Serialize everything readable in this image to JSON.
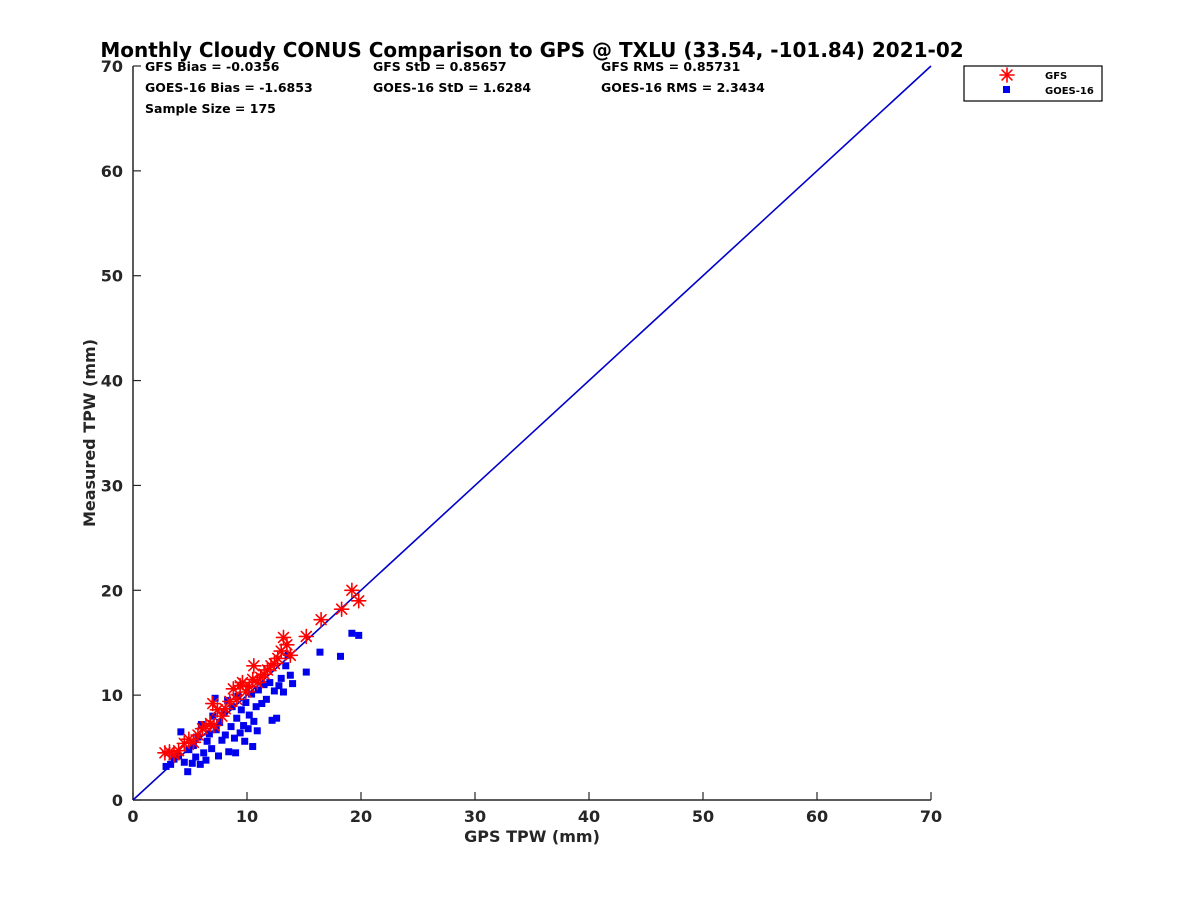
{
  "chart_data": {
    "type": "scatter",
    "title": "Monthly Cloudy CONUS Comparison to GPS @ TXLU (33.54, -101.84) 2021-02",
    "xlabel": "GPS TPW (mm)",
    "ylabel": "Measured TPW (mm)",
    "xlim": [
      0,
      70
    ],
    "ylim": [
      0,
      70
    ],
    "xticks": [
      "0",
      "10",
      "20",
      "30",
      "40",
      "50",
      "60",
      "70"
    ],
    "yticks": [
      "0",
      "10",
      "20",
      "30",
      "40",
      "50",
      "60",
      "70"
    ],
    "grid": false,
    "legend_position": "top-right",
    "stats": {
      "gfs_bias": "GFS Bias = -0.0356",
      "gfs_std": "GFS StD = 0.85657",
      "gfs_rms": "GFS RMS = 0.85731",
      "goes_bias": "GOES-16 Bias = -1.6853",
      "goes_std": "GOES-16 StD = 1.6284",
      "goes_rms": "GOES-16 RMS = 2.3434",
      "sample_size": "Sample Size = 175"
    },
    "reference_line": {
      "x": [
        0,
        70
      ],
      "y": [
        0,
        70
      ],
      "color": "#0000cc"
    },
    "series": [
      {
        "name": "GFS",
        "marker": "asterisk",
        "color": "#ff0000",
        "points": [
          [
            2.8,
            4.5
          ],
          [
            3.2,
            4.6
          ],
          [
            3.6,
            4.3
          ],
          [
            4.0,
            4.7
          ],
          [
            4.5,
            5.4
          ],
          [
            4.9,
            5.8
          ],
          [
            5.3,
            5.5
          ],
          [
            5.7,
            6.2
          ],
          [
            6.1,
            6.8
          ],
          [
            6.4,
            7.0
          ],
          [
            6.8,
            7.3
          ],
          [
            7.1,
            7.1
          ],
          [
            7.0,
            9.2
          ],
          [
            7.4,
            8.6
          ],
          [
            7.8,
            8.0
          ],
          [
            8.1,
            8.7
          ],
          [
            8.5,
            9.4
          ],
          [
            8.8,
            10.6
          ],
          [
            9.1,
            9.6
          ],
          [
            9.4,
            10.9
          ],
          [
            9.6,
            11.2
          ],
          [
            9.9,
            10.3
          ],
          [
            10.2,
            10.8
          ],
          [
            10.5,
            11.5
          ],
          [
            10.6,
            12.8
          ],
          [
            10.9,
            11.2
          ],
          [
            11.2,
            11.7
          ],
          [
            11.5,
            12.0
          ],
          [
            11.8,
            12.4
          ],
          [
            12.1,
            12.8
          ],
          [
            12.4,
            13.0
          ],
          [
            12.7,
            13.5
          ],
          [
            13.0,
            14.2
          ],
          [
            13.2,
            15.5
          ],
          [
            13.5,
            14.8
          ],
          [
            13.8,
            13.8
          ],
          [
            15.2,
            15.6
          ],
          [
            16.5,
            17.2
          ],
          [
            18.3,
            18.2
          ],
          [
            19.2,
            20.0
          ],
          [
            19.8,
            19.0
          ]
        ]
      },
      {
        "name": "GOES-16",
        "marker": "square",
        "color": "#0000ee",
        "points": [
          [
            2.9,
            3.2
          ],
          [
            3.3,
            3.4
          ],
          [
            3.6,
            3.9
          ],
          [
            4.0,
            4.2
          ],
          [
            4.2,
            6.5
          ],
          [
            4.5,
            3.6
          ],
          [
            4.8,
            2.7
          ],
          [
            4.9,
            4.8
          ],
          [
            5.2,
            3.5
          ],
          [
            5.3,
            5.2
          ],
          [
            5.5,
            4.1
          ],
          [
            5.7,
            6.0
          ],
          [
            5.9,
            3.4
          ],
          [
            6.0,
            7.2
          ],
          [
            6.2,
            4.5
          ],
          [
            6.4,
            3.8
          ],
          [
            6.5,
            5.6
          ],
          [
            6.7,
            6.3
          ],
          [
            6.9,
            4.9
          ],
          [
            7.0,
            8.0
          ],
          [
            7.2,
            9.7
          ],
          [
            7.3,
            6.7
          ],
          [
            7.5,
            4.2
          ],
          [
            7.6,
            7.4
          ],
          [
            7.8,
            5.7
          ],
          [
            8.0,
            8.4
          ],
          [
            8.1,
            6.2
          ],
          [
            8.3,
            9.5
          ],
          [
            8.4,
            4.6
          ],
          [
            8.6,
            7.0
          ],
          [
            8.7,
            8.9
          ],
          [
            8.9,
            5.9
          ],
          [
            9.0,
            4.5
          ],
          [
            9.1,
            7.8
          ],
          [
            9.2,
            9.9
          ],
          [
            9.4,
            6.4
          ],
          [
            9.5,
            8.6
          ],
          [
            9.7,
            7.1
          ],
          [
            9.8,
            5.6
          ],
          [
            9.9,
            9.3
          ],
          [
            10.1,
            6.8
          ],
          [
            10.2,
            8.1
          ],
          [
            10.4,
            10.1
          ],
          [
            10.5,
            5.1
          ],
          [
            10.6,
            7.5
          ],
          [
            10.8,
            8.9
          ],
          [
            10.9,
            6.6
          ],
          [
            11.0,
            10.5
          ],
          [
            11.3,
            9.2
          ],
          [
            11.5,
            11.0
          ],
          [
            11.7,
            9.6
          ],
          [
            12.0,
            11.2
          ],
          [
            12.2,
            7.6
          ],
          [
            12.4,
            10.4
          ],
          [
            12.6,
            7.8
          ],
          [
            12.8,
            10.9
          ],
          [
            13.0,
            11.6
          ],
          [
            13.2,
            10.3
          ],
          [
            13.4,
            12.8
          ],
          [
            13.6,
            13.8
          ],
          [
            13.8,
            11.9
          ],
          [
            14.0,
            11.1
          ],
          [
            15.2,
            12.2
          ],
          [
            16.4,
            14.1
          ],
          [
            18.2,
            13.7
          ],
          [
            19.2,
            15.9
          ],
          [
            19.8,
            15.7
          ]
        ]
      }
    ]
  }
}
